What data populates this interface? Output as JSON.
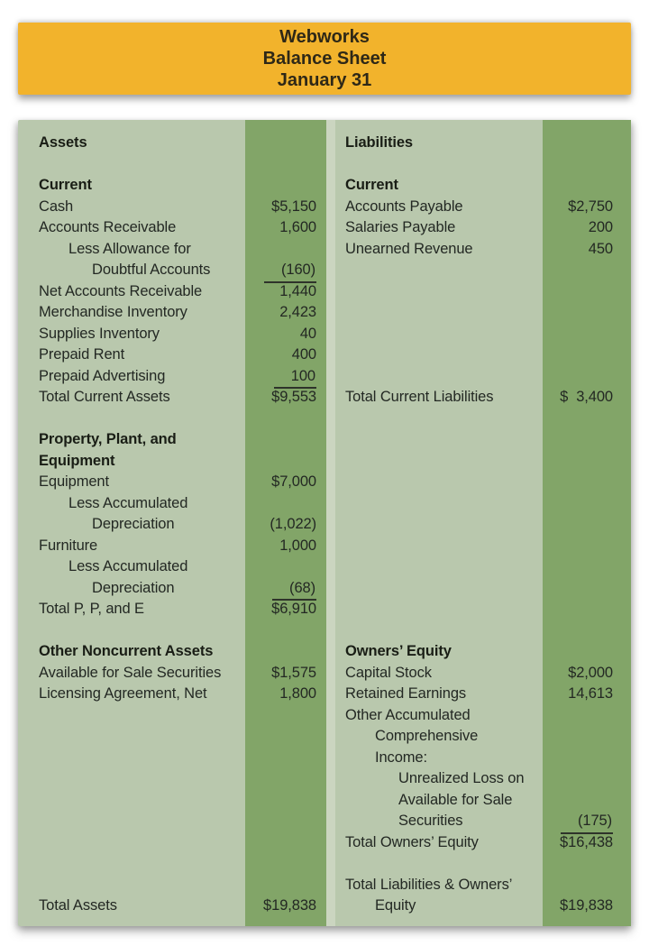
{
  "banner": {
    "lines": [
      "Webworks",
      "Balance Sheet",
      "January 31"
    ],
    "bg_color": "#F2B32C",
    "text_color": "#2E2817"
  },
  "colors": {
    "panel_light_green": "#B9C8AD",
    "amount_column_green": "#82A568",
    "half_divider": "#CBD5C0",
    "body_text": "#232823",
    "page_bg": "#FFFFFF"
  },
  "table": {
    "left_section_title": "Assets",
    "right_section_title": "Liabilities",
    "rows": [
      {
        "l": "Assets",
        "lb": true,
        "r": "Liabilities",
        "rb": true
      },
      {
        "spacer": true
      },
      {
        "l": "Current",
        "lb": true,
        "r": "Current",
        "rb": true
      },
      {
        "l": "Cash",
        "lv": "$5,150",
        "r": "Accounts Payable",
        "rv": "$2,750"
      },
      {
        "l": "Accounts Receivable",
        "lv": "1,600",
        "r": "Salaries Payable",
        "rv": "200"
      },
      {
        "l": "Less Allowance for",
        "li": 1,
        "r": "Unearned Revenue",
        "rv": "450"
      },
      {
        "l": "Doubtful Accounts",
        "li": 2,
        "lv": "(160)",
        "lu": true
      },
      {
        "l": "Net Accounts Receivable",
        "lv": "1,440"
      },
      {
        "l": "Merchandise Inventory",
        "lv": "2,423"
      },
      {
        "l": "Supplies Inventory",
        "lv": "40"
      },
      {
        "l": "Prepaid Rent",
        "lv": "400"
      },
      {
        "l": "Prepaid Advertising",
        "lv": "100",
        "lu": true
      },
      {
        "l": "Total Current Assets",
        "lv": "$9,553",
        "r": "Total Current Liabilities",
        "rv": "$  3,400"
      },
      {
        "spacer": true
      },
      {
        "l": "Property, Plant, and",
        "lb": true
      },
      {
        "l": "Equipment",
        "lb": true
      },
      {
        "l": "Equipment",
        "lv": "$7,000"
      },
      {
        "l": "Less Accumulated",
        "li": 1
      },
      {
        "l": "Depreciation",
        "li": 2,
        "lv": "(1,022)"
      },
      {
        "l": "Furniture",
        "lv": "1,000"
      },
      {
        "l": "Less Accumulated",
        "li": 1
      },
      {
        "l": "Depreciation",
        "li": 2,
        "lv": "(68)",
        "lu": true
      },
      {
        "l": "Total P, P, and E",
        "lv": "$6,910"
      },
      {
        "spacer": true
      },
      {
        "l": "Other Noncurrent Assets",
        "lb": true,
        "r": "Owners’ Equity",
        "rb": true
      },
      {
        "l": "Available for Sale Securities",
        "lv": "$1,575",
        "r": "Capital Stock",
        "rv": "$2,000"
      },
      {
        "l": "Licensing Agreement, Net",
        "lv": "1,800",
        "r": "Retained Earnings",
        "rv": "14,613"
      },
      {
        "r": "Other Accumulated"
      },
      {
        "r": "Comprehensive",
        "ri": 1
      },
      {
        "r": "Income:",
        "ri": 1
      },
      {
        "r": "Unrealized Loss on",
        "ri": 2
      },
      {
        "r": "Available for Sale",
        "ri": 2
      },
      {
        "r": "Securities",
        "ri": 2,
        "rv": "(175)",
        "ru": true
      },
      {
        "r": "Total Owners’ Equity",
        "rv": "$16,438"
      },
      {
        "spacer": true
      },
      {
        "r": "Total Liabilities & Owners’"
      },
      {
        "l": "Total Assets",
        "lv": "$19,838",
        "r": "Equity",
        "ri": 1,
        "rv": "$19,838"
      }
    ]
  }
}
